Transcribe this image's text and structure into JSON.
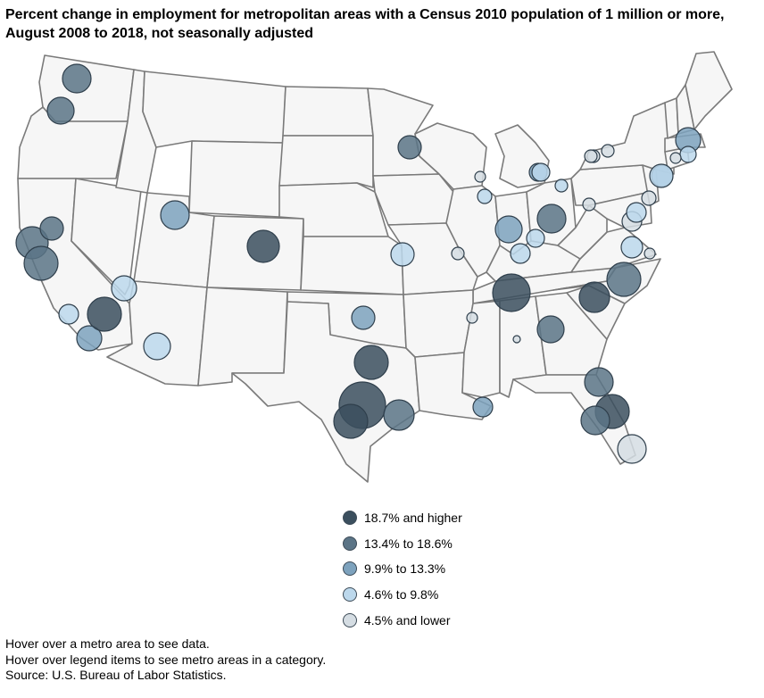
{
  "title": "Percent change in employment for metropolitan areas with a Census 2010 population of 1 million or more, August 2008 to 2018, not seasonally adjusted",
  "legend": [
    {
      "label": "18.7% and higher",
      "color": "#3b4f5e"
    },
    {
      "label": "13.4% to 18.6%",
      "color": "#5b7486"
    },
    {
      "label": "9.9% to 13.3%",
      "color": "#7da2bd"
    },
    {
      "label": "4.6% to 9.8%",
      "color": "#bcd8ec"
    },
    {
      "label": "4.5% and lower",
      "color": "#d5dde3"
    }
  ],
  "notes": {
    "hover_metro": "Hover over a metro area to see data.",
    "hover_legend": "Hover over legend items to see metro areas in a category.",
    "source": "Source: U.S. Bureau of Labor Statistics."
  },
  "map_data": {
    "basemap": "United States (contiguous 48 states)",
    "metros": [
      {
        "category": 1
      },
      {
        "category": 1
      },
      {
        "category": 1
      },
      {
        "category": 1
      },
      {
        "category": 1
      },
      {
        "category": 3
      },
      {
        "category": 2
      },
      {
        "category": 3
      },
      {
        "category": 0
      },
      {
        "category": 3
      },
      {
        "category": 2
      },
      {
        "category": 3
      },
      {
        "category": 0
      },
      {
        "category": 2
      },
      {
        "category": 0
      },
      {
        "category": 0
      },
      {
        "category": 0
      },
      {
        "category": 1
      },
      {
        "category": 1
      },
      {
        "category": 2
      },
      {
        "category": 3
      },
      {
        "category": 4
      },
      {
        "category": 4
      },
      {
        "category": 2
      },
      {
        "category": 4
      },
      {
        "category": 3
      },
      {
        "category": 2
      },
      {
        "category": 3
      },
      {
        "category": 1
      },
      {
        "category": 3
      },
      {
        "category": 4
      },
      {
        "category": 3
      },
      {
        "category": 4
      },
      {
        "category": 4
      },
      {
        "category": 0
      },
      {
        "category": 1
      },
      {
        "category": 0
      },
      {
        "category": 4
      },
      {
        "category": 4
      },
      {
        "category": 1
      },
      {
        "category": 3
      },
      {
        "category": 1
      },
      {
        "category": 0
      },
      {
        "category": 1
      },
      {
        "category": 4
      },
      {
        "category": 4
      },
      {
        "category": 4
      },
      {
        "category": 2
      },
      {
        "category": 3
      },
      {
        "category": 2
      },
      {
        "category": 3
      },
      {
        "category": 3
      },
      {
        "category": 4
      },
      {
        "category": 4
      }
    ]
  }
}
